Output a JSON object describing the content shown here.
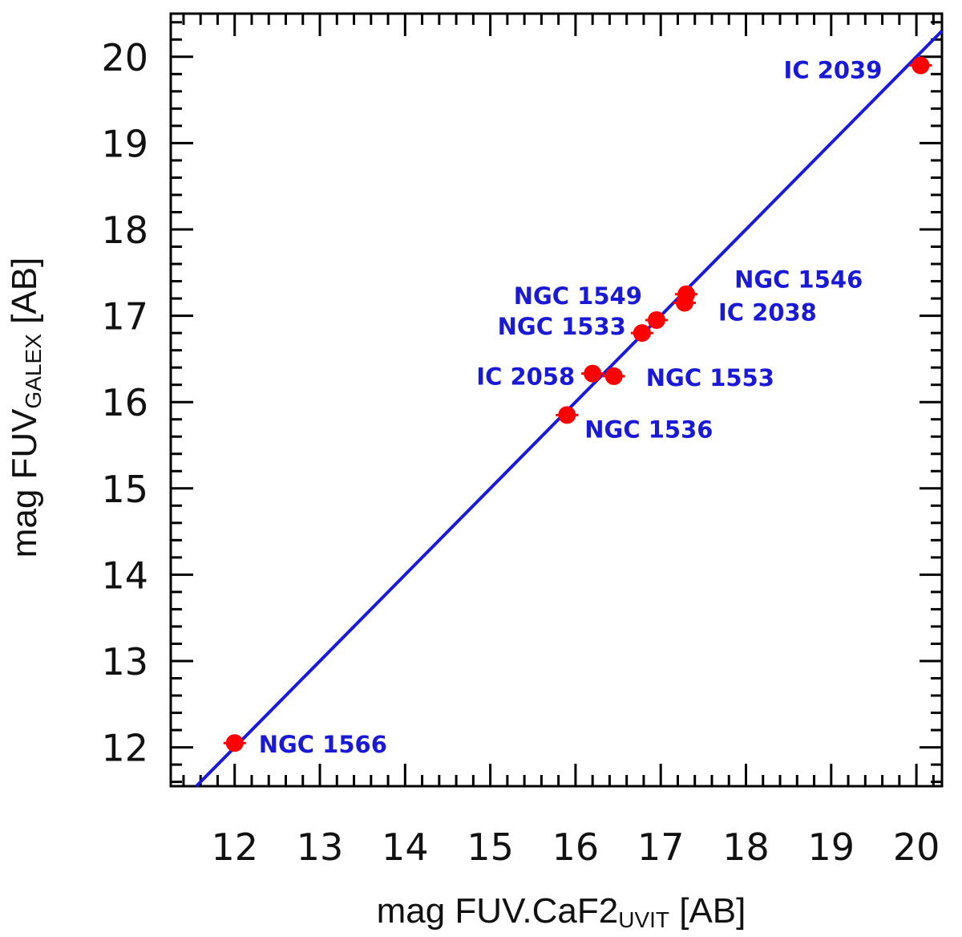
{
  "chart_data": {
    "type": "scatter",
    "xlabel": {
      "main": "mag FUV.CaF2",
      "sub": "UVIT",
      "unit": "[AB]"
    },
    "ylabel": {
      "main": "mag FUV",
      "sub": "GALEX",
      "unit": "[AB]"
    },
    "xlim": [
      11.25,
      20.3
    ],
    "ylim": [
      11.55,
      20.5
    ],
    "x_ticks": [
      12,
      13,
      14,
      15,
      16,
      17,
      18,
      19,
      20
    ],
    "y_ticks": [
      12,
      13,
      14,
      15,
      16,
      17,
      18,
      19,
      20
    ],
    "grid": false,
    "reference_line": {
      "kind": "one-to-one",
      "color": "#1a1adb"
    },
    "point_color": "#ff0000",
    "label_color": "#1a1ad6",
    "points": [
      {
        "name": "NGC 1566",
        "x": 12.0,
        "y": 12.05
      },
      {
        "name": "NGC 1536",
        "x": 15.9,
        "y": 15.85
      },
      {
        "name": "IC 2058",
        "x": 16.2,
        "y": 16.33
      },
      {
        "name": "NGC 1553",
        "x": 16.45,
        "y": 16.3
      },
      {
        "name": "NGC 1533",
        "x": 16.78,
        "y": 16.8
      },
      {
        "name": "NGC 1549",
        "x": 16.95,
        "y": 16.95
      },
      {
        "name": "IC 2038",
        "x": 17.28,
        "y": 17.15
      },
      {
        "name": "NGC 1546",
        "x": 17.3,
        "y": 17.25
      },
      {
        "name": "IC 2039",
        "x": 20.05,
        "y": 19.9
      }
    ]
  }
}
